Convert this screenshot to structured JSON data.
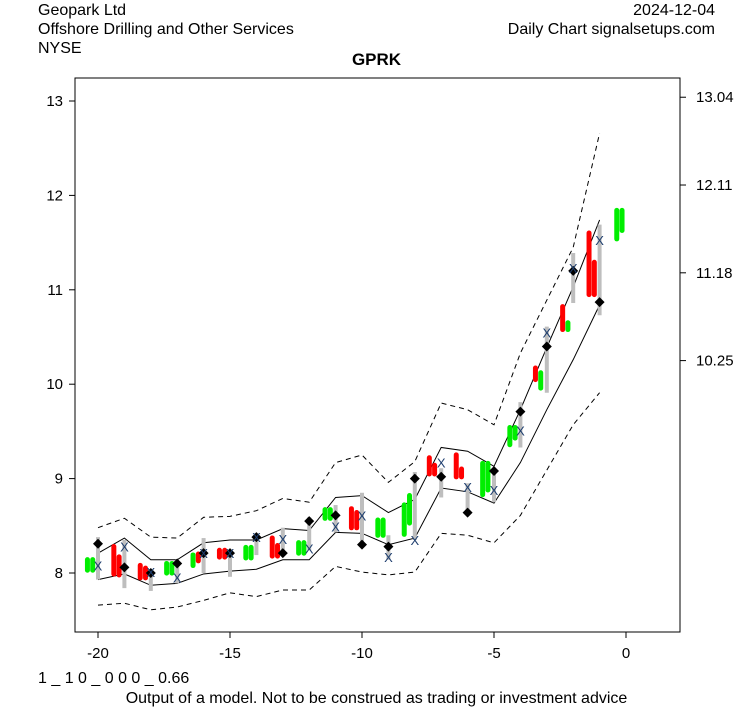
{
  "header": {
    "company": "Geopark Ltd",
    "industry": "Offshore Drilling and Other Services",
    "exchange": "NYSE",
    "date": "2024-12-04",
    "source": "Daily Chart signalsetups.com"
  },
  "footer": {
    "code": "1 _ 1 0 _ 0 0 0 _ 0.66",
    "disclaimer": "Output of a model. Not to be construed as trading or investment advice"
  },
  "colors": {
    "up": "#00ee00",
    "down": "#ff0000",
    "range": "#bebebe",
    "x_marker": "#1f3f6f"
  },
  "chart_data": {
    "type": "line",
    "title": "GPRK",
    "xlim": [
      -21,
      1.5
    ],
    "ylim": [
      7.3,
      13.25
    ],
    "x_ticks": [
      -20,
      -15,
      -10,
      -5,
      0
    ],
    "y_ticks_left": [
      8,
      9,
      10,
      11,
      12,
      13
    ],
    "y_ticks_right": [
      10.25,
      11.18,
      12.11,
      13.04
    ],
    "days": [
      -20,
      -19,
      -18,
      -17,
      -16,
      -15,
      -14,
      -13,
      -12,
      -11,
      -10,
      -9,
      -8,
      -7,
      -6,
      -5,
      -4,
      -3,
      -2,
      -1
    ],
    "band_upper": [
      8.21,
      8.37,
      8.14,
      8.14,
      8.32,
      8.35,
      8.35,
      8.47,
      8.45,
      8.8,
      8.82,
      8.64,
      8.78,
      9.33,
      9.29,
      9.13,
      9.73,
      10.39,
      11.03,
      11.74
    ],
    "band_lower": [
      7.93,
      7.99,
      7.87,
      7.89,
      7.99,
      8.02,
      8.04,
      8.14,
      8.14,
      8.43,
      8.42,
      8.3,
      8.37,
      8.9,
      8.86,
      8.74,
      9.17,
      9.73,
      10.26,
      10.84
    ],
    "dashed_upper": [
      8.48,
      8.58,
      8.38,
      8.37,
      8.59,
      8.6,
      8.66,
      8.79,
      8.75,
      9.17,
      9.25,
      8.96,
      9.18,
      9.8,
      9.73,
      9.57,
      10.33,
      10.89,
      11.45,
      12.66
    ],
    "dashed_lower": [
      7.66,
      7.68,
      7.61,
      7.64,
      7.71,
      7.79,
      7.75,
      7.82,
      7.82,
      8.07,
      8.01,
      7.98,
      8.01,
      8.42,
      8.4,
      8.32,
      8.61,
      9.09,
      9.57,
      9.91
    ],
    "ranges": [
      [
        7.93,
        8.38
      ],
      [
        7.84,
        8.35
      ],
      [
        7.81,
        8.03
      ],
      [
        7.89,
        8.14
      ],
      [
        8.0,
        8.37
      ],
      [
        7.96,
        8.24
      ],
      [
        8.19,
        8.4
      ],
      [
        8.19,
        8.48
      ],
      [
        8.24,
        8.59
      ],
      [
        8.43,
        8.72
      ],
      [
        8.28,
        8.85
      ],
      [
        8.14,
        8.4
      ],
      [
        8.35,
        9.07
      ],
      [
        8.8,
        9.11
      ],
      [
        8.64,
        8.95
      ],
      [
        8.75,
        9.11
      ],
      [
        9.33,
        9.81
      ],
      [
        9.91,
        10.61
      ],
      [
        10.86,
        11.39
      ],
      [
        10.73,
        11.69
      ]
    ],
    "diamonds": [
      8.31,
      8.06,
      8.0,
      8.1,
      8.21,
      8.21,
      8.38,
      8.21,
      8.55,
      8.61,
      8.3,
      8.28,
      9.0,
      9.02,
      8.64,
      9.08,
      9.71,
      10.4,
      11.2,
      10.87
    ],
    "x_marks": [
      8.08,
      8.28,
      8.01,
      7.95,
      8.21,
      8.21,
      8.38,
      8.36,
      8.26,
      8.49,
      8.61,
      8.17,
      8.35,
      9.17,
      8.91,
      8.88,
      9.51,
      10.55,
      11.23,
      11.53
    ],
    "bars": [
      {
        "x": -20.4,
        "lo": 8.05,
        "hi": 8.12,
        "c": "up"
      },
      {
        "x": -20.2,
        "lo": 8.05,
        "hi": 8.12,
        "c": "up"
      },
      {
        "x": -19.4,
        "lo": 8.01,
        "hi": 8.26,
        "c": "down"
      },
      {
        "x": -19.2,
        "lo": 8.0,
        "hi": 8.15,
        "c": "down"
      },
      {
        "x": -18.4,
        "lo": 7.97,
        "hi": 8.06,
        "c": "down"
      },
      {
        "x": -18.2,
        "lo": 7.97,
        "hi": 8.03,
        "c": "down"
      },
      {
        "x": -17.4,
        "lo": 8.02,
        "hi": 8.08,
        "c": "up"
      },
      {
        "x": -17.2,
        "lo": 8.02,
        "hi": 8.08,
        "c": "up"
      },
      {
        "x": -16.4,
        "lo": 8.1,
        "hi": 8.17,
        "c": "up"
      },
      {
        "x": -16.2,
        "lo": 8.15,
        "hi": 8.18,
        "c": "down"
      },
      {
        "x": -15.4,
        "lo": 8.19,
        "hi": 8.22,
        "c": "down"
      },
      {
        "x": -15.2,
        "lo": 8.19,
        "hi": 8.22,
        "c": "down"
      },
      {
        "x": -14.4,
        "lo": 8.18,
        "hi": 8.25,
        "c": "up"
      },
      {
        "x": -14.2,
        "lo": 8.18,
        "hi": 8.25,
        "c": "up"
      },
      {
        "x": -13.4,
        "lo": 8.2,
        "hi": 8.35,
        "c": "down"
      },
      {
        "x": -13.2,
        "lo": 8.2,
        "hi": 8.27,
        "c": "down"
      },
      {
        "x": -12.4,
        "lo": 8.23,
        "hi": 8.3,
        "c": "up"
      },
      {
        "x": -12.2,
        "lo": 8.23,
        "hi": 8.3,
        "c": "up"
      },
      {
        "x": -11.4,
        "lo": 8.6,
        "hi": 8.65,
        "c": "up"
      },
      {
        "x": -11.2,
        "lo": 8.6,
        "hi": 8.65,
        "c": "up"
      },
      {
        "x": -10.4,
        "lo": 8.5,
        "hi": 8.66,
        "c": "down"
      },
      {
        "x": -10.2,
        "lo": 8.5,
        "hi": 8.62,
        "c": "down"
      },
      {
        "x": -9.4,
        "lo": 8.42,
        "hi": 8.54,
        "c": "up"
      },
      {
        "x": -9.2,
        "lo": 8.42,
        "hi": 8.54,
        "c": "up"
      },
      {
        "x": -8.4,
        "lo": 8.43,
        "hi": 8.7,
        "c": "up"
      },
      {
        "x": -8.2,
        "lo": 8.55,
        "hi": 8.8,
        "c": "up"
      },
      {
        "x": -7.45,
        "lo": 9.07,
        "hi": 9.2,
        "c": "down"
      },
      {
        "x": -7.25,
        "lo": 9.07,
        "hi": 9.12,
        "c": "down"
      },
      {
        "x": -6.43,
        "lo": 9.04,
        "hi": 9.23,
        "c": "down"
      },
      {
        "x": -6.23,
        "lo": 9.04,
        "hi": 9.08,
        "c": "down"
      },
      {
        "x": -5.43,
        "lo": 8.85,
        "hi": 9.14,
        "c": "up"
      },
      {
        "x": -5.23,
        "lo": 8.9,
        "hi": 9.14,
        "c": "up"
      },
      {
        "x": -4.4,
        "lo": 9.38,
        "hi": 9.52,
        "c": "up"
      },
      {
        "x": -4.2,
        "lo": 9.45,
        "hi": 9.52,
        "c": "up"
      },
      {
        "x": -3.43,
        "lo": 10.07,
        "hi": 10.15,
        "c": "down"
      },
      {
        "x": -3.23,
        "lo": 9.98,
        "hi": 10.1,
        "c": "up"
      },
      {
        "x": -2.4,
        "lo": 10.6,
        "hi": 10.8,
        "c": "down"
      },
      {
        "x": -2.2,
        "lo": 10.6,
        "hi": 10.63,
        "c": "up"
      },
      {
        "x": -1.4,
        "lo": 10.97,
        "hi": 11.58,
        "c": "down"
      },
      {
        "x": -1.2,
        "lo": 10.97,
        "hi": 11.27,
        "c": "down"
      },
      {
        "x": -0.35,
        "lo": 11.56,
        "hi": 11.82,
        "c": "up"
      },
      {
        "x": -0.15,
        "lo": 11.65,
        "hi": 11.82,
        "c": "up"
      }
    ]
  }
}
